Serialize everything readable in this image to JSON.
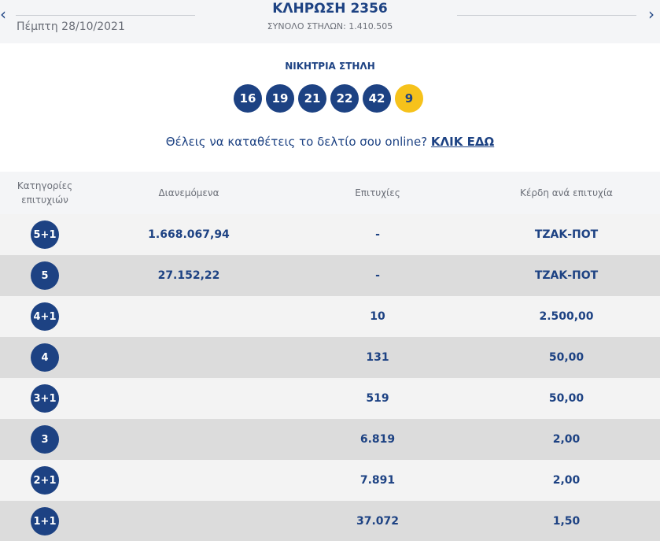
{
  "header": {
    "date": "Πέμπτη 28/10/2021",
    "title": "ΚΛΗΡΩΣΗ 2356",
    "subtitle": "ΣΥΝΟΛΟ ΣΤΗΛΩΝ: 1.410.505"
  },
  "winning": {
    "label": "ΝΙΚΗΤΡΙΑ ΣΤΗΛΗ",
    "numbers": [
      "16",
      "19",
      "21",
      "22",
      "42"
    ],
    "bonus": "9"
  },
  "cta": {
    "text": "Θέλεις να καταθέτεις το δελτίο σου online?",
    "link": "ΚΛΙΚ ΕΔΩ"
  },
  "table": {
    "headers": [
      "Κατηγορίες επιτυχιών",
      "Διανεμόμενα",
      "Επιτυχίες",
      "Κέρδη ανά επιτυχία"
    ],
    "rows": [
      [
        "5+1",
        "1.668.067,94",
        "-",
        "ΤΖΑΚ-ΠΟΤ"
      ],
      [
        "5",
        "27.152,22",
        "-",
        "ΤΖΑΚ-ΠΟΤ"
      ],
      [
        "4+1",
        null,
        "10",
        "2.500,00"
      ],
      [
        "4",
        null,
        "131",
        "50,00"
      ],
      [
        "3+1",
        null,
        "519",
        "50,00"
      ],
      [
        "3",
        null,
        "6.819",
        "2,00"
      ],
      [
        "2+1",
        null,
        "7.891",
        "2,00"
      ],
      [
        "1+1",
        null,
        "37.072",
        "1,50"
      ]
    ]
  }
}
